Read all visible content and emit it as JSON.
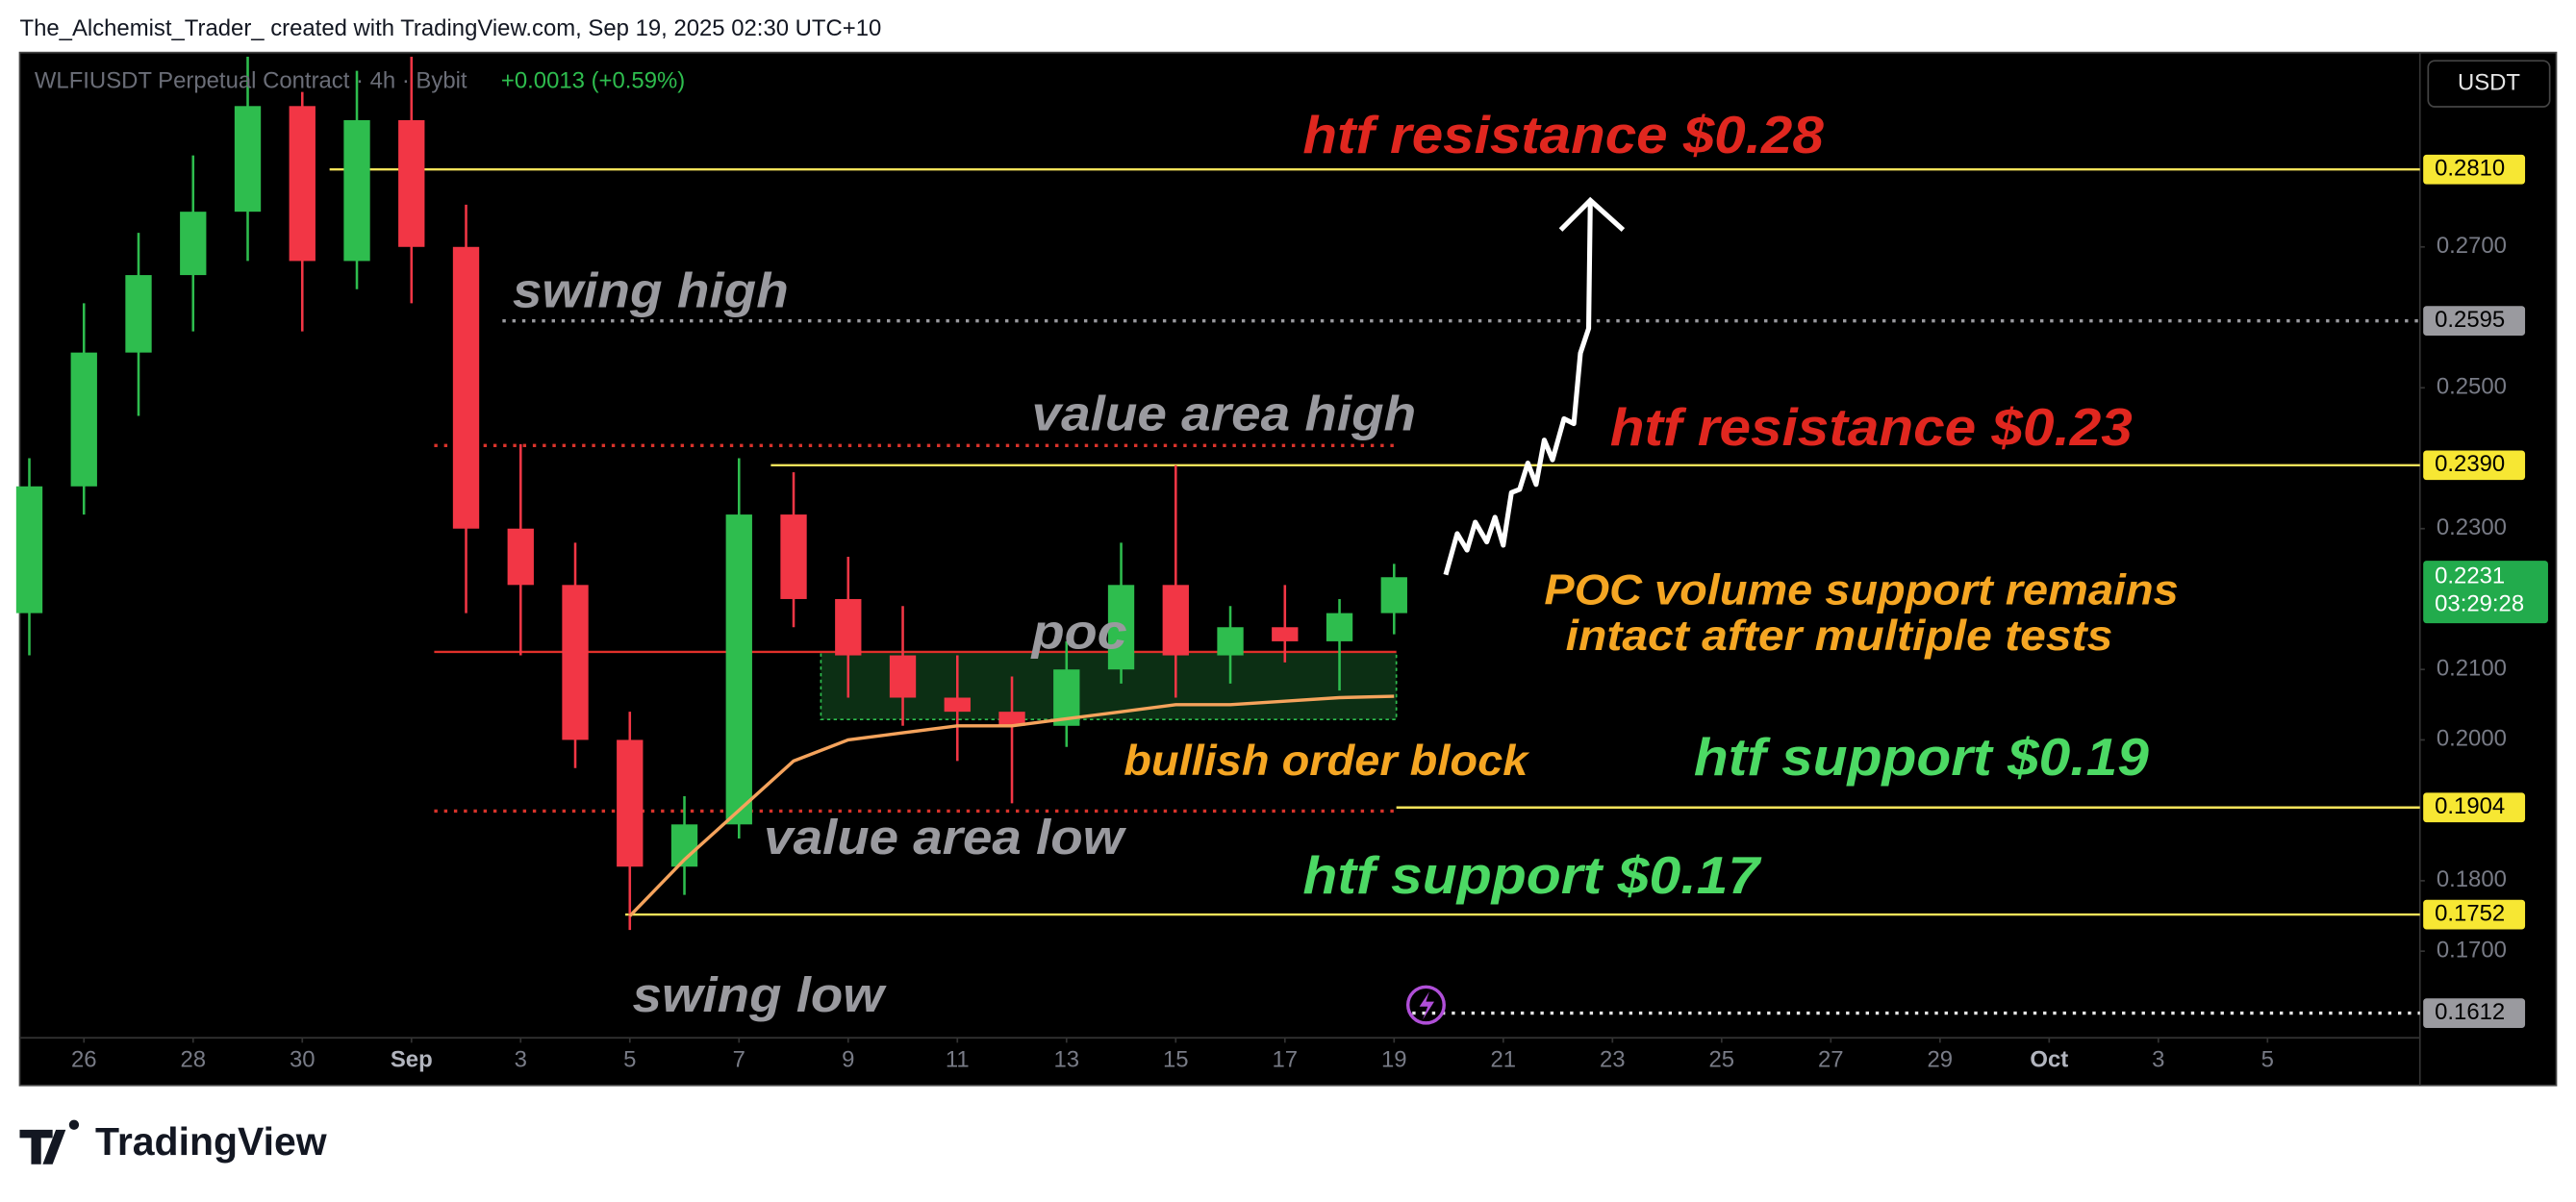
{
  "header": "The_Alchemist_Trader_ created with TradingView.com, Sep 19, 2025 02:30 UTC+10",
  "footer_logo": "TradingView",
  "chart_data": {
    "type": "candlestick",
    "symbol": "WLFIUSDT Perpetual Contract · 4h · Bybit",
    "change": "+0.0013 (+0.59%)",
    "currency": "USDT",
    "x": [
      "2025-08-25",
      "2025-08-26",
      "2025-08-27",
      "2025-08-28",
      "2025-08-29",
      "2025-08-30",
      "2025-08-31",
      "2025-09-01",
      "2025-09-02",
      "2025-09-03",
      "2025-09-04",
      "2025-09-05",
      "2025-09-06",
      "2025-09-07",
      "2025-09-08",
      "2025-09-09",
      "2025-09-10",
      "2025-09-11",
      "2025-09-12",
      "2025-09-13",
      "2025-09-14",
      "2025-09-15",
      "2025-09-16",
      "2025-09-17",
      "2025-09-18",
      "2025-09-19"
    ],
    "open": [
      0.218,
      0.236,
      0.255,
      0.266,
      0.275,
      0.29,
      0.268,
      0.288,
      0.27,
      0.23,
      0.222,
      0.2,
      0.182,
      0.188,
      0.232,
      0.22,
      0.212,
      0.206,
      0.204,
      0.202,
      0.21,
      0.222,
      0.212,
      0.216,
      0.214,
      0.218
    ],
    "high": [
      0.24,
      0.262,
      0.272,
      0.283,
      0.297,
      0.292,
      0.295,
      0.297,
      0.276,
      0.242,
      0.228,
      0.204,
      0.192,
      0.24,
      0.238,
      0.226,
      0.219,
      0.212,
      0.209,
      0.214,
      0.228,
      0.239,
      0.219,
      0.222,
      0.22,
      0.225
    ],
    "low": [
      0.212,
      0.232,
      0.246,
      0.258,
      0.268,
      0.258,
      0.264,
      0.262,
      0.218,
      0.212,
      0.196,
      0.173,
      0.178,
      0.186,
      0.216,
      0.206,
      0.202,
      0.197,
      0.191,
      0.199,
      0.208,
      0.206,
      0.208,
      0.211,
      0.207,
      0.215
    ],
    "close": [
      0.236,
      0.255,
      0.266,
      0.275,
      0.29,
      0.268,
      0.288,
      0.27,
      0.23,
      0.222,
      0.2,
      0.182,
      0.188,
      0.232,
      0.22,
      0.212,
      0.206,
      0.204,
      0.202,
      0.21,
      0.222,
      0.212,
      0.216,
      0.214,
      0.218,
      0.2231
    ],
    "up_color": "#2ebd4e",
    "down_color": "#f23645",
    "xlim": [
      "2025-08-24T19:46",
      "2025-10-07T19:00"
    ],
    "xticks": [
      {
        "value": "2025-08-26",
        "label": "26"
      },
      {
        "value": "2025-08-28",
        "label": "28"
      },
      {
        "value": "2025-08-30",
        "label": "30"
      },
      {
        "value": "2025-09-01",
        "label": "Sep"
      },
      {
        "value": "2025-09-03",
        "label": "3"
      },
      {
        "value": "2025-09-05",
        "label": "5"
      },
      {
        "value": "2025-09-07",
        "label": "7"
      },
      {
        "value": "2025-09-09",
        "label": "9"
      },
      {
        "value": "2025-09-11",
        "label": "11"
      },
      {
        "value": "2025-09-13",
        "label": "13"
      },
      {
        "value": "2025-09-15",
        "label": "15"
      },
      {
        "value": "2025-09-17",
        "label": "17"
      },
      {
        "value": "2025-09-19",
        "label": "19"
      },
      {
        "value": "2025-09-21",
        "label": "21"
      },
      {
        "value": "2025-09-23",
        "label": "23"
      },
      {
        "value": "2025-09-25",
        "label": "25"
      },
      {
        "value": "2025-09-27",
        "label": "27"
      },
      {
        "value": "2025-09-29",
        "label": "29"
      },
      {
        "value": "2025-10-01",
        "label": "Oct"
      },
      {
        "value": "2025-10-03",
        "label": "3"
      },
      {
        "value": "2025-10-05",
        "label": "5"
      }
    ],
    "ylim": [
      0.1577,
      0.2976
    ],
    "yticks": [
      {
        "value": 0.27,
        "label": "0.2700"
      },
      {
        "value": 0.25,
        "label": "0.2500"
      },
      {
        "value": 0.23,
        "label": "0.2300"
      },
      {
        "value": 0.21,
        "label": "0.2100"
      },
      {
        "value": 0.2,
        "label": "0.2000"
      },
      {
        "value": 0.18,
        "label": "0.1800"
      },
      {
        "value": 0.17,
        "label": "0.1700"
      }
    ],
    "moving_average": {
      "color": "#f5a35c",
      "x": [
        "2025-09-05",
        "2025-09-06",
        "2025-09-07",
        "2025-09-08",
        "2025-09-09",
        "2025-09-10",
        "2025-09-11",
        "2025-09-12",
        "2025-09-13",
        "2025-09-14",
        "2025-09-15",
        "2025-09-16",
        "2025-09-17",
        "2025-09-18",
        "2025-09-19"
      ],
      "values": [
        0.175,
        0.183,
        0.19,
        0.197,
        0.2,
        0.201,
        0.202,
        0.202,
        0.203,
        0.204,
        0.205,
        0.205,
        0.2055,
        0.206,
        0.2062
      ]
    },
    "order_block": {
      "start": "2025-09-08T12:00",
      "end": "2025-09-19T01:00",
      "top": 0.2125,
      "bottom": 0.2029,
      "color": "#2ebd4e"
    },
    "levels": [
      {
        "value": 0.281,
        "start": "2025-08-30T12:00",
        "color": "#f7e35a",
        "style": "solid"
      },
      {
        "value": 0.2595,
        "start": "2025-09-02T16:00",
        "color": "#9a9a9f",
        "style": "dotted"
      },
      {
        "value": 0.2418,
        "start": "2025-09-01T10:00",
        "end": "2025-09-19T01:00",
        "color": "#d9332b",
        "style": "dotted"
      },
      {
        "value": 0.239,
        "start": "2025-09-07T14:00",
        "color": "#f7e35a",
        "style": "solid"
      },
      {
        "value": 0.2125,
        "start": "2025-09-01T10:00",
        "end": "2025-09-19T01:00",
        "color": "#e0302a",
        "style": "solid"
      },
      {
        "value": 0.1899,
        "start": "2025-09-01T10:00",
        "end": "2025-09-19T01:00",
        "color": "#d9332b",
        "style": "dotted"
      },
      {
        "value": 0.1904,
        "start": "2025-09-19T01:00",
        "color": "#f7e35a",
        "style": "solid"
      },
      {
        "value": 0.1752,
        "start": "2025-09-04T22:00",
        "color": "#f7e35a",
        "style": "solid"
      },
      {
        "value": 0.1612,
        "start": "2025-09-19T08:00",
        "color": "#e6e6e6",
        "style": "dotted"
      }
    ],
    "price_labels": [
      {
        "value": 0.281,
        "label": "0.2810",
        "color": "#f7e733"
      },
      {
        "value": 0.2595,
        "label": "0.2595",
        "color": "#9a9a9f"
      },
      {
        "value": 0.239,
        "label": "0.2390",
        "color": "#f7e733"
      },
      {
        "value": 0.1904,
        "label": "0.1904",
        "color": "#f7e733"
      },
      {
        "value": 0.1752,
        "label": "0.1752",
        "color": "#f7e733"
      },
      {
        "value": 0.1612,
        "label": "0.1612",
        "color": "#9a9a9f"
      }
    ],
    "last_price": {
      "value": 0.2231,
      "label": "0.2231",
      "countdown": "03:29:28",
      "color": "#22ab4c"
    },
    "annotations": [
      {
        "text": "htf resistance $0.28",
        "color": "#e0271f"
      },
      {
        "text": "swing high",
        "color": "#9a9a9f"
      },
      {
        "text": "value area high",
        "color": "#9a9a9f"
      },
      {
        "text": "htf resistance $0.23",
        "color": "#e0271f"
      },
      {
        "text": "POC volume support remains",
        "color": "#f5a623"
      },
      {
        "text": "intact after multiple tests",
        "color": "#f5a623"
      },
      {
        "text": "poc",
        "color": "#9a9a9f"
      },
      {
        "text": "bullish order block",
        "color": "#f5a623"
      },
      {
        "text": "htf support $0.19",
        "color": "#4cd964"
      },
      {
        "text": "value area low",
        "color": "#9a9a9f"
      },
      {
        "text": "htf support $0.17",
        "color": "#4cd964"
      },
      {
        "text": "swing low",
        "color": "#9a9a9f"
      }
    ]
  }
}
